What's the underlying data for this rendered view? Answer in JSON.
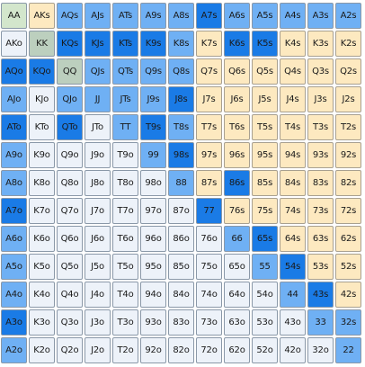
{
  "colors": {
    "D": "#1a7be6",
    "L": "#6fb0f4",
    "T": "#fde9c0",
    "W": "#edf2f9",
    "G": "#d3e6cc",
    "S": "#bccfbe"
  },
  "rows": [
    {
      "hands": [
        "AA",
        "AKs",
        "AQs",
        "AJs",
        "ATs",
        "A9s",
        "A8s",
        "A7s",
        "A6s",
        "A5s",
        "A4s",
        "A3s",
        "A2s"
      ],
      "colors": "GTLLLLLDLLLLL"
    },
    {
      "hands": [
        "AKo",
        "KK",
        "KQs",
        "KJs",
        "KTs",
        "K9s",
        "K8s",
        "K7s",
        "K6s",
        "K5s",
        "K4s",
        "K3s",
        "K2s"
      ],
      "colors": "WSDDDDLTDDTTT"
    },
    {
      "hands": [
        "AQo",
        "KQo",
        "QQ",
        "QJs",
        "QTs",
        "Q9s",
        "Q8s",
        "Q7s",
        "Q6s",
        "Q5s",
        "Q4s",
        "Q3s",
        "Q2s"
      ],
      "colors": "DDSLLLLTTTTTT"
    },
    {
      "hands": [
        "AJo",
        "KJo",
        "QJo",
        "JJ",
        "JTs",
        "J9s",
        "J8s",
        "J7s",
        "J6s",
        "J5s",
        "J4s",
        "J3s",
        "J2s"
      ],
      "colors": "LWLLLLDTTTTTT"
    },
    {
      "hands": [
        "ATo",
        "KTo",
        "QTo",
        "JTo",
        "TT",
        "T9s",
        "T8s",
        "T7s",
        "T6s",
        "T5s",
        "T4s",
        "T3s",
        "T2s"
      ],
      "colors": "DWDWLDLTTTTTT"
    },
    {
      "hands": [
        "A9o",
        "K9o",
        "Q9o",
        "J9o",
        "T9o",
        "99",
        "98s",
        "97s",
        "96s",
        "95s",
        "94s",
        "93s",
        "92s"
      ],
      "colors": "LWWWWLDTTTTTT"
    },
    {
      "hands": [
        "A8o",
        "K8o",
        "Q8o",
        "J8o",
        "T8o",
        "98o",
        "88",
        "87s",
        "86s",
        "85s",
        "84s",
        "83s",
        "82s"
      ],
      "colors": "LWWWWWLTDTTTT"
    },
    {
      "hands": [
        "A7o",
        "K7o",
        "Q7o",
        "J7o",
        "T7o",
        "97o",
        "87o",
        "77",
        "76s",
        "75s",
        "74s",
        "73s",
        "72s"
      ],
      "colors": "DWWWWWWDTTTTT"
    },
    {
      "hands": [
        "A6o",
        "K6o",
        "Q6o",
        "J6o",
        "T6o",
        "96o",
        "86o",
        "76o",
        "66",
        "65s",
        "64s",
        "63s",
        "62s"
      ],
      "colors": "LWWWWWWWLDTTT"
    },
    {
      "hands": [
        "A5o",
        "K5o",
        "Q5o",
        "J5o",
        "T5o",
        "95o",
        "85o",
        "75o",
        "65o",
        "55",
        "54s",
        "53s",
        "52s"
      ],
      "colors": "LWWWWWWWWLDTT"
    },
    {
      "hands": [
        "A4o",
        "K4o",
        "Q4o",
        "J4o",
        "T4o",
        "94o",
        "84o",
        "74o",
        "64o",
        "54o",
        "44",
        "43s",
        "42s"
      ],
      "colors": "LWWWWWWWWWLDT"
    },
    {
      "hands": [
        "A3o",
        "K3o",
        "Q3o",
        "J3o",
        "T3o",
        "93o",
        "83o",
        "73o",
        "63o",
        "53o",
        "43o",
        "33",
        "32s"
      ],
      "colors": "DWWWWWWWWWWLL"
    },
    {
      "hands": [
        "A2o",
        "K2o",
        "Q2o",
        "J2o",
        "T2o",
        "92o",
        "82o",
        "72o",
        "62o",
        "52o",
        "42o",
        "32o",
        "22"
      ],
      "colors": "LWWWWWWWWWWWL"
    }
  ]
}
